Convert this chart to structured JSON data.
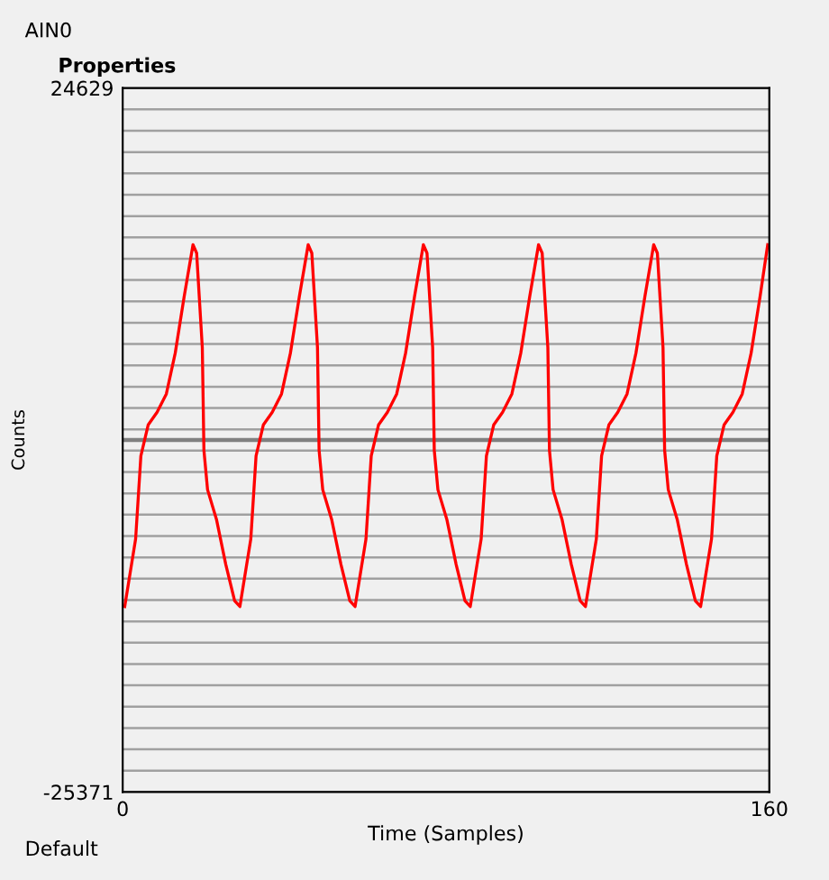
{
  "chart_data": {
    "type": "line",
    "title": "AIN0",
    "xlabel": "Time (Samples)",
    "ylabel": "Counts",
    "annotations": [
      "Properties",
      "Default"
    ],
    "x": [
      0.5,
      3.2,
      4.5,
      6.3,
      8.5,
      10.8,
      13,
      15.2,
      17.4,
      18.3,
      19.7,
      20.1,
      21,
      23.2,
      25.5,
      27.7,
      29,
      31.7,
      33,
      34.8,
      37,
      39.3,
      41.5,
      43.7,
      45.9,
      46.8,
      48.2,
      48.6,
      49.5,
      51.7,
      54,
      56.2,
      57.5,
      60.2,
      61.5,
      63.3,
      65.5,
      67.8,
      70,
      72.2,
      74.4,
      75.3,
      76.7,
      77.1,
      78,
      80.2,
      82.5,
      84.7,
      86,
      88.7,
      90,
      91.8,
      94,
      96.3,
      98.5,
      100.7,
      102.9,
      103.8,
      105.2,
      105.6,
      106.5,
      108.7,
      111,
      113.2,
      114.5,
      117.2,
      118.5,
      120.3,
      122.5,
      124.8,
      127,
      129.2,
      131.4,
      132.3,
      133.7,
      134.1,
      135,
      137.2,
      139.5,
      141.7,
      143,
      145.7,
      147,
      148.8,
      151,
      153.3,
      155.5,
      157.7,
      159.6
    ],
    "series": [
      {
        "color": "#ff0000",
        "values": [
          -12200,
          -7400,
          -1500,
          700,
          1600,
          2900,
          5800,
          9800,
          13500,
          12900,
          6200,
          -1100,
          -3900,
          -6000,
          -9200,
          -11800,
          -12200,
          -7400,
          -1500,
          700,
          1600,
          2900,
          5800,
          9800,
          13500,
          12900,
          6200,
          -1100,
          -3900,
          -6000,
          -9200,
          -11800,
          -12200,
          -7400,
          -1500,
          700,
          1600,
          2900,
          5800,
          9800,
          13500,
          12900,
          6200,
          -1100,
          -3900,
          -6000,
          -9200,
          -11800,
          -12200,
          -7400,
          -1500,
          700,
          1600,
          2900,
          5800,
          9800,
          13500,
          12900,
          6200,
          -1100,
          -3900,
          -6000,
          -9200,
          -11800,
          -12200,
          -7400,
          -1500,
          700,
          1600,
          2900,
          5800,
          9800,
          13500,
          12900,
          6200,
          -1100,
          -3900,
          -6000,
          -9200,
          -11800,
          -12200,
          -7400,
          -1500,
          700,
          1600,
          2900,
          5800,
          9800,
          13500
        ]
      }
    ],
    "xlim": [
      0,
      160
    ],
    "xticks": [
      0,
      160
    ],
    "ylim": [
      -25371,
      24629
    ],
    "yticks": [
      -25371,
      {
        "value": -23856,
        "label": null
      },
      {
        "value": -22341,
        "label": null
      },
      {
        "value": -20826,
        "label": null
      },
      {
        "value": -19311,
        "label": null
      },
      {
        "value": -17796,
        "label": null
      },
      {
        "value": -16281,
        "label": null
      },
      {
        "value": -14766,
        "label": null
      },
      {
        "value": -13251,
        "label": null
      },
      {
        "value": -11736,
        "label": null
      },
      {
        "value": -10221,
        "label": null
      },
      {
        "value": -8706,
        "label": null
      },
      {
        "value": -7191,
        "label": null
      },
      {
        "value": -5676,
        "label": null
      },
      {
        "value": -4161,
        "label": null
      },
      {
        "value": -2646,
        "label": null
      },
      {
        "value": -1131,
        "label": null
      },
      {
        "value": 384,
        "label": null
      },
      {
        "value": 1899,
        "label": null
      },
      {
        "value": 3414,
        "label": null
      },
      {
        "value": 4929,
        "label": null
      },
      {
        "value": 6444,
        "label": null
      },
      {
        "value": 7959,
        "label": null
      },
      {
        "value": 9474,
        "label": null
      },
      {
        "value": 10989,
        "label": null
      },
      {
        "value": 12504,
        "label": null
      },
      {
        "value": 14019,
        "label": null
      },
      {
        "value": 15534,
        "label": null
      },
      {
        "value": 17049,
        "label": null
      },
      {
        "value": 18564,
        "label": null
      },
      {
        "value": 20079,
        "label": null
      },
      {
        "value": 21594,
        "label": null
      },
      {
        "value": 23109,
        "label": null
      },
      24629
    ],
    "ref_lines": [
      {
        "axis": "y",
        "value": -371,
        "color": "#808080"
      }
    ],
    "grid": "y",
    "legend": false,
    "marker": "none",
    "line_style": "solid"
  }
}
